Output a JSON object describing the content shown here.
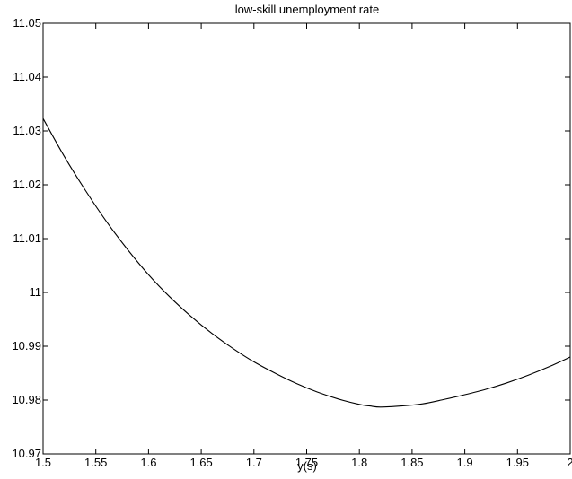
{
  "chart_data": {
    "type": "line",
    "title": "low-skill unemployment rate",
    "xlabel": "y(s)",
    "ylabel": "",
    "xlim": [
      1.5,
      2.0
    ],
    "ylim": [
      10.97,
      11.05
    ],
    "xticks": [
      "1.5",
      "1.55",
      "1.6",
      "1.65",
      "1.7",
      "1.75",
      "1.8",
      "1.85",
      "1.9",
      "1.95",
      "2"
    ],
    "yticks": [
      "10.97",
      "10.98",
      "10.99",
      "11",
      "11.01",
      "11.02",
      "11.03",
      "11.04",
      "11.05"
    ],
    "grid": false,
    "legend": "none",
    "line_color": "#000000",
    "series": [
      {
        "x": [
          1.5,
          1.52,
          1.54,
          1.56,
          1.58,
          1.6,
          1.62,
          1.64,
          1.66,
          1.68,
          1.7,
          1.72,
          1.74,
          1.76,
          1.78,
          1.8,
          1.81,
          1.82,
          1.84,
          1.86,
          1.88,
          1.9,
          1.92,
          1.94,
          1.96,
          1.98,
          2.0
        ],
        "y": [
          11.0323,
          11.0253,
          11.019,
          11.0132,
          11.008,
          11.0033,
          10.9992,
          10.9956,
          10.9924,
          10.9896,
          10.9871,
          10.985,
          10.9831,
          10.9815,
          10.9802,
          10.9792,
          10.9789,
          10.9787,
          10.9789,
          10.9793,
          10.9801,
          10.981,
          10.982,
          10.9832,
          10.9846,
          10.9862,
          10.988
        ]
      }
    ]
  }
}
